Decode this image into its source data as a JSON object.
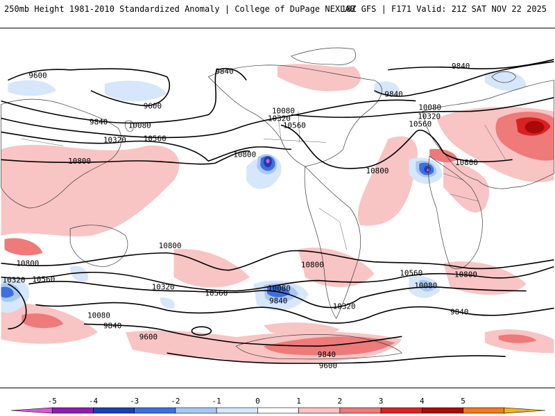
{
  "header": {
    "left": "250mb Height 1981-2010 Standardized Anomaly | College of DuPage NEXLAB",
    "right": "18Z GFS | F171 Valid: 21Z SAT NOV 22 2025"
  },
  "colorbar": {
    "ticks": [
      "-5",
      "-4",
      "-3",
      "-2",
      "-1",
      "0",
      "1",
      "2",
      "3",
      "4",
      "5"
    ],
    "colors": [
      "#e055e0",
      "#8a1fb0",
      "#1a3fb0",
      "#3e6fe0",
      "#a8c8f4",
      "#d6e6fb",
      "#ffffff",
      "#f8c4c4",
      "#ee7a7a",
      "#d82222",
      "#a80a0a",
      "#f07a20",
      "#f4b020"
    ]
  },
  "map": {
    "contour_labels": [
      "9600",
      "9840",
      "10080",
      "10320",
      "10560",
      "10800"
    ]
  }
}
